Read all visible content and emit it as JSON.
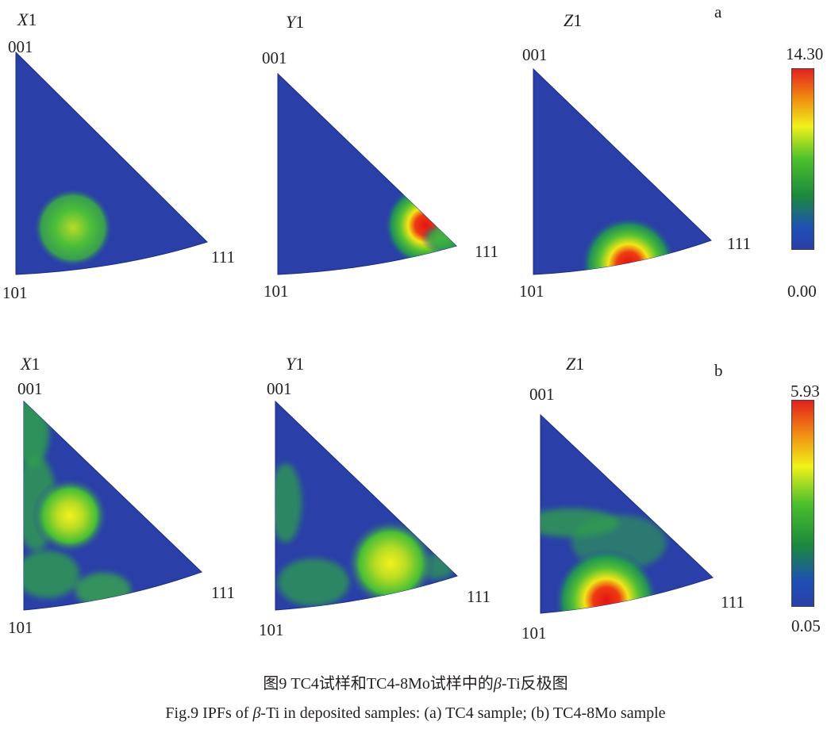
{
  "figure": {
    "row_a": {
      "letter": "a",
      "scale": {
        "max": "14.30",
        "min": "0.00"
      },
      "panels": [
        {
          "axis_letter": "X",
          "axis_num": "1",
          "corner_001": "001",
          "corner_101": "101",
          "corner_111": "111"
        },
        {
          "axis_letter": "Y",
          "axis_num": "1",
          "corner_001": "001",
          "corner_101": "101",
          "corner_111": "111"
        },
        {
          "axis_letter": "Z",
          "axis_num": "1",
          "corner_001": "001",
          "corner_101": "101",
          "corner_111": "111"
        }
      ]
    },
    "row_b": {
      "letter": "b",
      "scale": {
        "max": "5.93",
        "min": "0.05"
      },
      "panels": [
        {
          "axis_letter": "X",
          "axis_num": "1",
          "corner_001": "001",
          "corner_101": "101",
          "corner_111": "111"
        },
        {
          "axis_letter": "Y",
          "axis_num": "1",
          "corner_001": "001",
          "corner_101": "101",
          "corner_111": "111"
        },
        {
          "axis_letter": "Z",
          "axis_num": "1",
          "corner_001": "001",
          "corner_101": "101",
          "corner_111": "111"
        }
      ]
    },
    "colormap": [
      "#2a3fa8",
      "#1f57b8",
      "#1c8a3c",
      "#4cc02c",
      "#f1f11a",
      "#f08a12",
      "#e21e1e"
    ],
    "caption_cn": {
      "prefix": "图9  TC4试样和TC4-8Mo试样中的",
      "beta": "β",
      "suffix": "-Ti反极图"
    },
    "caption_en": {
      "prefix": "Fig.9  IPFs of ",
      "beta": "β",
      "suffix": "-Ti in deposited samples: (a) TC4 sample; (b) TC4-8Mo sample"
    }
  }
}
